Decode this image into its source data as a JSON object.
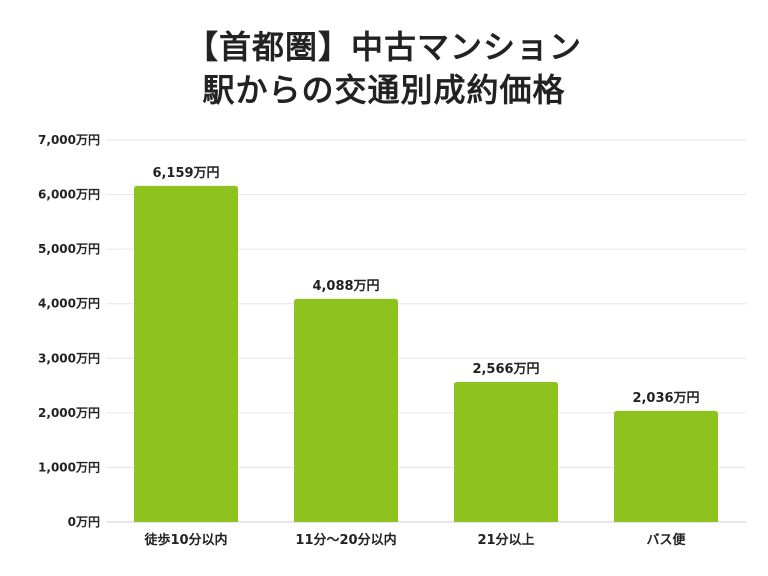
{
  "title_lines": [
    "【首都圏】中古マンション",
    "駅からの交通別成約価格"
  ],
  "chart_data": {
    "type": "bar",
    "title": "【首都圏】中古マンション 駅からの交通別成約価格",
    "categories": [
      "徒歩10分以内",
      "11分～20分以内",
      "21分以上",
      "バス便"
    ],
    "values": [
      6159,
      4088,
      2566,
      2036
    ],
    "data_labels": [
      "6,159万円",
      "4,088万円",
      "2,566万円",
      "2,036万円"
    ],
    "ylim": [
      0,
      7000
    ],
    "yticks": [
      0,
      1000,
      2000,
      3000,
      4000,
      5000,
      6000,
      7000
    ],
    "ytick_labels": [
      "0万円",
      "1,000万円",
      "2,000万円",
      "3,000万円",
      "4,000万円",
      "5,000万円",
      "6,000万円",
      "7,000万円"
    ],
    "grid": true,
    "legend": "none",
    "bar_color": "#8dc21f",
    "grid_color": "#e6e6e6"
  }
}
